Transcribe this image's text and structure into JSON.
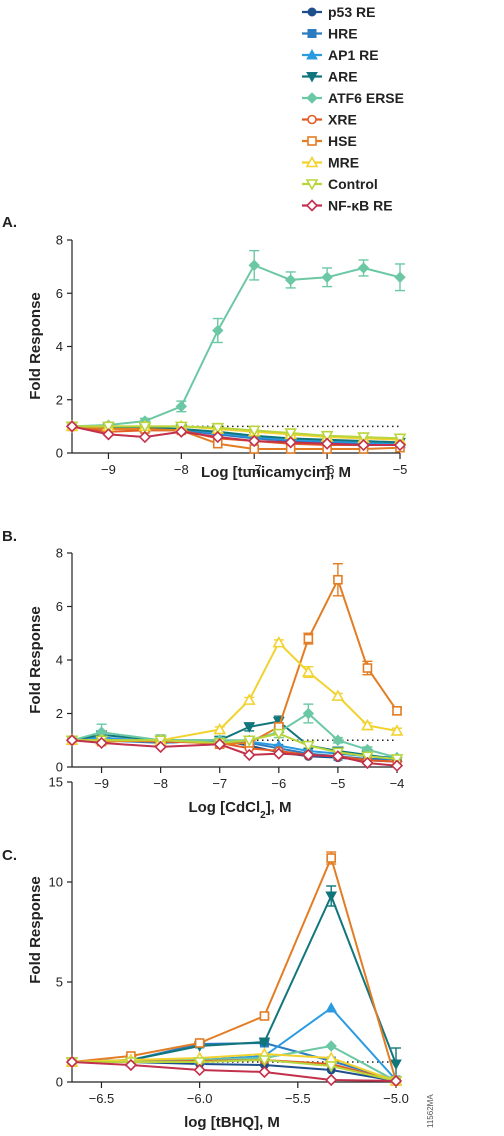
{
  "legend": {
    "entries": [
      {
        "name": "p53 RE",
        "color": "#1f4e8c",
        "marker": "circle-filled"
      },
      {
        "name": "HRE",
        "color": "#2a7bbf",
        "marker": "square-filled"
      },
      {
        "name": "AP1 RE",
        "color": "#2b9be1",
        "marker": "triangle-up-filled"
      },
      {
        "name": "ARE",
        "color": "#11767c",
        "marker": "triangle-down-filled"
      },
      {
        "name": "ATF6 ERSE",
        "color": "#6cc8a4",
        "marker": "diamond-filled"
      },
      {
        "name": "XRE",
        "color": "#e35a25",
        "marker": "circle-open"
      },
      {
        "name": "HSE",
        "color": "#e37d24",
        "marker": "square-open"
      },
      {
        "name": "MRE",
        "color": "#f2d22e",
        "marker": "triangle-up-open"
      },
      {
        "name": "Control",
        "color": "#b9d53d",
        "marker": "triangle-down-open"
      },
      {
        "name": "NF-κB RE",
        "color": "#c2304c",
        "marker": "diamond-open"
      }
    ]
  },
  "figure_code": "11562MA",
  "chart_data": [
    {
      "panel": "A.",
      "type": "line",
      "xlabel": "Log [tunicamycin], M",
      "ylabel": "Fold Response",
      "xlim": [
        -9.5,
        -5
      ],
      "ylim": [
        0,
        8
      ],
      "xticks": [
        -9,
        -8,
        -7,
        -6,
        -5
      ],
      "xtick_labels": [
        "−9",
        "−8",
        "−7",
        "−6",
        "−5"
      ],
      "yticks": [
        0,
        2,
        4,
        6,
        8
      ],
      "ytick_labels": [
        "0",
        "2",
        "4",
        "6",
        "8"
      ],
      "reference_line": 1,
      "x": [
        -9.5,
        -9,
        -8.5,
        -8,
        -7.5,
        -7,
        -6.5,
        -6,
        -5.5,
        -5
      ],
      "series": [
        {
          "name": "p53 RE",
          "values": [
            1.0,
            0.9,
            0.9,
            0.9,
            0.7,
            0.6,
            0.5,
            0.45,
            0.4,
            0.35
          ]
        },
        {
          "name": "HRE",
          "values": [
            1.0,
            0.95,
            0.9,
            0.85,
            0.7,
            0.55,
            0.45,
            0.4,
            0.35,
            0.3
          ]
        },
        {
          "name": "AP1 RE",
          "values": [
            1.0,
            1.0,
            0.95,
            0.9,
            0.75,
            0.6,
            0.5,
            0.45,
            0.4,
            0.35
          ]
        },
        {
          "name": "ARE",
          "values": [
            1.0,
            0.95,
            0.95,
            0.9,
            0.8,
            0.65,
            0.55,
            0.5,
            0.45,
            0.4
          ]
        },
        {
          "name": "ATF6 ERSE",
          "values": [
            1.0,
            1.05,
            1.2,
            1.75,
            4.6,
            7.05,
            6.5,
            6.6,
            6.95,
            6.6
          ],
          "errors": [
            0,
            0.1,
            0.1,
            0.2,
            0.45,
            0.55,
            0.3,
            0.35,
            0.3,
            0.5
          ]
        },
        {
          "name": "XRE",
          "values": [
            1.0,
            0.8,
            0.85,
            0.85,
            0.55,
            0.45,
            0.35,
            0.3,
            0.3,
            0.3
          ]
        },
        {
          "name": "HSE",
          "values": [
            1.0,
            0.9,
            0.9,
            0.85,
            0.35,
            0.15,
            0.15,
            0.15,
            0.15,
            0.2
          ]
        },
        {
          "name": "MRE",
          "values": [
            1.0,
            1.0,
            1.0,
            1.0,
            0.9,
            0.8,
            0.7,
            0.6,
            0.55,
            0.5
          ]
        },
        {
          "name": "Control",
          "values": [
            1.0,
            1.0,
            1.0,
            1.0,
            0.95,
            0.85,
            0.75,
            0.65,
            0.6,
            0.55
          ]
        },
        {
          "name": "NF-κB RE",
          "values": [
            1.0,
            0.7,
            0.6,
            0.8,
            0.6,
            0.45,
            0.4,
            0.35,
            0.3,
            0.3
          ]
        }
      ]
    },
    {
      "panel": "B.",
      "type": "line",
      "xlabel": "Log [CdCl2], M",
      "xlabel_main": "Log [CdCl",
      "xlabel_sub": "2",
      "xlabel_end": "], M",
      "ylabel": "Fold Response",
      "xlim": [
        -9.5,
        -4
      ],
      "ylim": [
        0,
        8
      ],
      "xticks": [
        -9,
        -8,
        -7,
        -6,
        -5,
        -4
      ],
      "xtick_labels": [
        "−9",
        "−8",
        "−7",
        "−6",
        "−5",
        "−4"
      ],
      "yticks": [
        0,
        2,
        4,
        6,
        8
      ],
      "ytick_labels": [
        "0",
        "2",
        "4",
        "6",
        "8"
      ],
      "reference_line": 1,
      "x": [
        -9.5,
        -9,
        -8,
        -7,
        -6.5,
        -6,
        -5.5,
        -5,
        -4.5,
        -4
      ],
      "series": [
        {
          "name": "p53 RE",
          "values": [
            1.0,
            1.1,
            0.9,
            1.0,
            0.8,
            0.55,
            0.4,
            0.35,
            0.25,
            0.2
          ]
        },
        {
          "name": "HRE",
          "values": [
            1.0,
            1.0,
            0.9,
            1.0,
            0.9,
            0.7,
            0.5,
            0.4,
            0.3,
            0.3
          ]
        },
        {
          "name": "AP1 RE",
          "values": [
            1.0,
            1.1,
            0.95,
            1.0,
            0.95,
            0.8,
            0.6,
            0.5,
            0.4,
            0.35
          ]
        },
        {
          "name": "ARE",
          "values": [
            1.0,
            1.2,
            1.0,
            1.0,
            1.5,
            1.7,
            0.8,
            0.6,
            0.45,
            0.3
          ],
          "errors": [
            0,
            0.1,
            0.1,
            0.1,
            0.15,
            0.2,
            0.1,
            0.1,
            0.05,
            0.05
          ]
        },
        {
          "name": "ATF6 ERSE",
          "values": [
            1.0,
            1.3,
            1.0,
            1.0,
            1.0,
            1.3,
            2.0,
            1.0,
            0.65,
            0.35
          ],
          "errors": [
            0,
            0.3,
            0.2,
            0.1,
            0.1,
            0.2,
            0.35,
            0.1,
            0.1,
            0.05
          ]
        },
        {
          "name": "XRE",
          "values": [
            1.0,
            1.0,
            0.95,
            0.9,
            0.7,
            0.6,
            0.45,
            0.4,
            0.25,
            0.2
          ]
        },
        {
          "name": "HSE",
          "values": [
            1.0,
            0.95,
            1.0,
            0.85,
            0.9,
            1.5,
            4.8,
            7.0,
            3.7,
            2.1
          ],
          "errors": [
            0,
            0.1,
            0.1,
            0.1,
            0.1,
            0.15,
            0.2,
            0.6,
            0.25,
            0.15
          ]
        },
        {
          "name": "MRE",
          "values": [
            1.0,
            1.0,
            1.0,
            1.4,
            2.5,
            4.65,
            3.55,
            2.65,
            1.55,
            1.35
          ],
          "errors": [
            0,
            0.05,
            0.05,
            0.1,
            0.1,
            0.1,
            0.2,
            0.1,
            0.1,
            0.1
          ]
        },
        {
          "name": "Control",
          "values": [
            1.0,
            1.0,
            1.0,
            0.9,
            1.0,
            1.25,
            0.8,
            0.55,
            0.4,
            0.3
          ]
        },
        {
          "name": "NF-κB RE",
          "values": [
            1.0,
            0.9,
            0.75,
            0.85,
            0.45,
            0.5,
            0.45,
            0.4,
            0.15,
            0.05
          ]
        }
      ]
    },
    {
      "panel": "C.",
      "type": "line",
      "xlabel": "log [tBHQ], M",
      "ylabel": "Fold Response",
      "xlim": [
        -6.65,
        -5.0
      ],
      "ylim": [
        0,
        15
      ],
      "xticks": [
        -6.5,
        -6.0,
        -5.5,
        -5.0
      ],
      "xtick_labels": [
        "−6.5",
        "−6.0",
        "−5.5",
        "−5.0"
      ],
      "yticks": [
        0,
        5,
        10,
        15
      ],
      "ytick_labels": [
        "0",
        "5",
        "10",
        "15"
      ],
      "reference_line": 1,
      "x": [
        -6.65,
        -6.35,
        -6.0,
        -5.67,
        -5.33,
        -5.0
      ],
      "series": [
        {
          "name": "p53 RE",
          "values": [
            1.0,
            1.0,
            0.9,
            0.85,
            0.6,
            0.05
          ]
        },
        {
          "name": "HRE",
          "values": [
            1.0,
            1.1,
            1.9,
            1.95,
            1.05,
            0.1
          ]
        },
        {
          "name": "AP1 RE",
          "values": [
            1.0,
            1.0,
            1.1,
            1.3,
            3.7,
            0.1
          ]
        },
        {
          "name": "ARE",
          "values": [
            1.0,
            1.1,
            1.8,
            2.0,
            9.3,
            0.9
          ],
          "errors": [
            0,
            0.05,
            0.05,
            0.1,
            0.5,
            0.8
          ]
        },
        {
          "name": "ATF6 ERSE",
          "values": [
            1.0,
            1.05,
            1.1,
            1.2,
            1.8,
            0.05
          ]
        },
        {
          "name": "XRE",
          "values": [
            1.0,
            1.0,
            1.05,
            1.1,
            0.9,
            0.05
          ]
        },
        {
          "name": "HSE",
          "values": [
            1.0,
            1.3,
            1.95,
            3.3,
            11.2,
            0.05
          ],
          "errors": [
            0,
            0.05,
            0.05,
            0.1,
            0.3,
            0.05
          ]
        },
        {
          "name": "MRE",
          "values": [
            1.0,
            1.1,
            1.2,
            1.4,
            1.2,
            0.05
          ]
        },
        {
          "name": "Control",
          "values": [
            1.0,
            1.0,
            1.0,
            1.1,
            0.8,
            0.05
          ]
        },
        {
          "name": "NF-κB RE",
          "values": [
            1.0,
            0.85,
            0.6,
            0.5,
            0.1,
            0.05
          ]
        }
      ]
    }
  ]
}
